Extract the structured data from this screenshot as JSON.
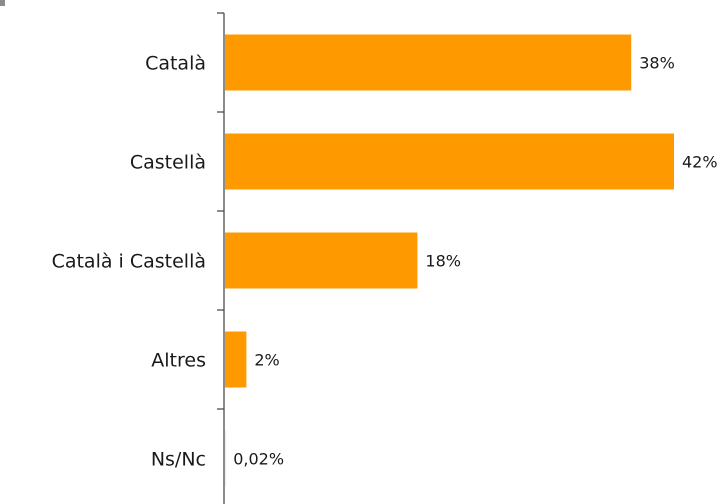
{
  "chart_data": {
    "type": "bar",
    "orientation": "horizontal",
    "categories": [
      "Català",
      "Castellà",
      "Català i Castellà",
      "Altres",
      "Ns/Nc"
    ],
    "values": [
      38,
      42,
      18,
      2,
      0.02
    ],
    "value_labels": [
      "38%",
      "42%",
      "18%",
      "2%",
      "0,02%"
    ],
    "xlim": [
      0,
      42
    ],
    "bar_color": "#FF9900",
    "axis_color": "#404040",
    "grid": false,
    "legend": "none",
    "title": "",
    "xlabel": "",
    "ylabel": ""
  }
}
